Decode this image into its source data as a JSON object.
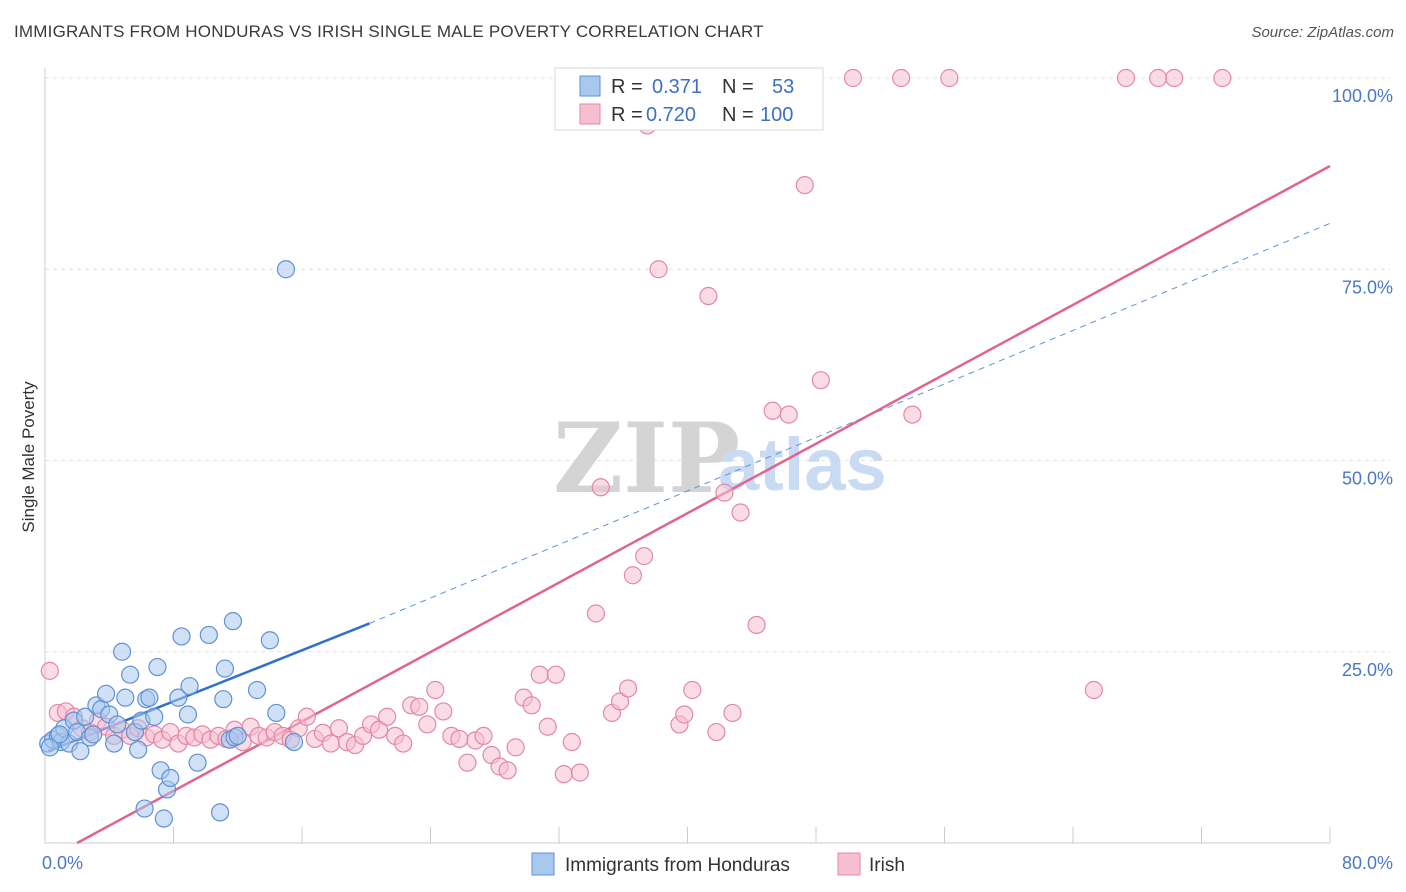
{
  "title": "IMMIGRANTS FROM HONDURAS VS IRISH SINGLE MALE POVERTY CORRELATION CHART",
  "source": "Source: ZipAtlas.com",
  "watermark": {
    "zip": "ZIP",
    "atlas": "atlas"
  },
  "colors": {
    "blue_fill": "#a9c8ee",
    "blue_stroke": "#5f92d6",
    "blue_line": "#2f6fd0",
    "pink_fill": "#f6bfd0",
    "pink_stroke": "#e487a8",
    "pink_line": "#e0648f",
    "grid": "#e3e3e3",
    "tick_text": "#4a78c8"
  },
  "legend": {
    "rows": [
      {
        "r_label": "R =",
        "r_value": "0.371",
        "n_label": "N =",
        "n_value": "53"
      },
      {
        "r_label": "R =",
        "r_value": "0.720",
        "n_label": "N =",
        "n_value": "100"
      }
    ]
  },
  "chart_data": {
    "type": "scatter",
    "title": "IMMIGRANTS FROM HONDURAS VS IRISH SINGLE MALE POVERTY CORRELATION CHART",
    "xlabel": "",
    "ylabel": "Single Male Poverty",
    "xlim": [
      0,
      80
    ],
    "ylim": [
      0,
      100
    ],
    "x_tick_labels": [
      "0.0%",
      "80.0%"
    ],
    "y_tick_labels": [
      "25.0%",
      "50.0%",
      "75.0%",
      "100.0%"
    ],
    "y_ticks": [
      25,
      50,
      75,
      100
    ],
    "grid": true,
    "legend_position": "top-center",
    "series": [
      {
        "name": "Immigrants from Honduras",
        "color": "#a9c8ee",
        "r": 0.371,
        "n": 53,
        "trend": {
          "x0": 0.2,
          "y0": 12.0,
          "x1": 20.2,
          "y1": 28.7,
          "extended_x1": 80,
          "extended_y1": 81.0
        },
        "points": [
          [
            0.2,
            13.0
          ],
          [
            0.5,
            13.5
          ],
          [
            0.8,
            14.0
          ],
          [
            1.0,
            13.2
          ],
          [
            1.2,
            15.0
          ],
          [
            1.5,
            13.0
          ],
          [
            1.8,
            16.0
          ],
          [
            2.0,
            14.5
          ],
          [
            2.2,
            12.0
          ],
          [
            2.5,
            16.5
          ],
          [
            2.8,
            13.8
          ],
          [
            3.0,
            14.2
          ],
          [
            3.2,
            18.0
          ],
          [
            3.5,
            17.5
          ],
          [
            3.8,
            19.5
          ],
          [
            4.0,
            16.8
          ],
          [
            4.3,
            13.0
          ],
          [
            4.5,
            15.5
          ],
          [
            4.8,
            25.0
          ],
          [
            5.0,
            19.0
          ],
          [
            5.3,
            22.0
          ],
          [
            5.6,
            14.5
          ],
          [
            5.8,
            12.2
          ],
          [
            6.0,
            16.0
          ],
          [
            6.3,
            18.8
          ],
          [
            6.5,
            19.0
          ],
          [
            6.8,
            16.5
          ],
          [
            7.0,
            23.0
          ],
          [
            7.2,
            9.5
          ],
          [
            7.6,
            7.0
          ],
          [
            7.8,
            8.5
          ],
          [
            6.2,
            4.5
          ],
          [
            7.4,
            3.2
          ],
          [
            8.3,
            19.0
          ],
          [
            8.5,
            27.0
          ],
          [
            9.0,
            20.5
          ],
          [
            8.9,
            16.8
          ],
          [
            9.5,
            10.5
          ],
          [
            10.2,
            27.2
          ],
          [
            11.2,
            22.8
          ],
          [
            11.1,
            18.8
          ],
          [
            11.5,
            13.5
          ],
          [
            11.7,
            29.0
          ],
          [
            11.8,
            13.8
          ],
          [
            12.0,
            14.0
          ],
          [
            13.2,
            20.0
          ],
          [
            14.0,
            26.5
          ],
          [
            14.4,
            17.0
          ],
          [
            15.5,
            13.2
          ],
          [
            15.0,
            75.0
          ],
          [
            10.9,
            4.0
          ],
          [
            0.3,
            12.5
          ],
          [
            0.9,
            14.2
          ]
        ]
      },
      {
        "name": "Irish",
        "color": "#f6bfd0",
        "r": 0.72,
        "n": 100,
        "trend": {
          "x0": 2.0,
          "y0": 0.0,
          "x1": 80,
          "y1": 88.5
        },
        "points": [
          [
            0.3,
            22.5
          ],
          [
            0.8,
            17.0
          ],
          [
            1.3,
            17.2
          ],
          [
            1.8,
            16.5
          ],
          [
            2.3,
            15.0
          ],
          [
            2.8,
            14.5
          ],
          [
            3.3,
            16.0
          ],
          [
            3.8,
            15.2
          ],
          [
            4.3,
            14.0
          ],
          [
            4.8,
            14.8
          ],
          [
            5.3,
            14.0
          ],
          [
            5.8,
            15.0
          ],
          [
            6.3,
            13.8
          ],
          [
            6.8,
            14.2
          ],
          [
            7.3,
            13.5
          ],
          [
            7.8,
            14.5
          ],
          [
            8.3,
            13.0
          ],
          [
            8.8,
            14.0
          ],
          [
            9.3,
            13.8
          ],
          [
            9.8,
            14.2
          ],
          [
            10.3,
            13.5
          ],
          [
            10.8,
            14.0
          ],
          [
            11.3,
            13.6
          ],
          [
            11.8,
            14.8
          ],
          [
            12.3,
            13.2
          ],
          [
            12.8,
            15.2
          ],
          [
            13.3,
            14.0
          ],
          [
            13.8,
            13.8
          ],
          [
            14.3,
            14.5
          ],
          [
            14.8,
            14.0
          ],
          [
            15.3,
            13.5
          ],
          [
            15.8,
            15.0
          ],
          [
            16.3,
            16.5
          ],
          [
            16.8,
            13.6
          ],
          [
            17.3,
            14.4
          ],
          [
            17.8,
            13.0
          ],
          [
            18.3,
            15.0
          ],
          [
            18.8,
            13.2
          ],
          [
            19.3,
            12.8
          ],
          [
            19.8,
            14.0
          ],
          [
            20.3,
            15.5
          ],
          [
            20.8,
            14.8
          ],
          [
            21.3,
            16.5
          ],
          [
            21.8,
            14.0
          ],
          [
            22.3,
            13.0
          ],
          [
            22.8,
            18.0
          ],
          [
            23.3,
            17.8
          ],
          [
            23.8,
            15.5
          ],
          [
            24.3,
            20.0
          ],
          [
            24.8,
            17.2
          ],
          [
            25.3,
            14.0
          ],
          [
            25.8,
            13.6
          ],
          [
            26.3,
            10.5
          ],
          [
            26.8,
            13.4
          ],
          [
            27.3,
            14.0
          ],
          [
            27.8,
            11.5
          ],
          [
            28.3,
            10.0
          ],
          [
            28.8,
            9.5
          ],
          [
            29.3,
            12.5
          ],
          [
            29.8,
            19.0
          ],
          [
            30.3,
            18.0
          ],
          [
            30.8,
            22.0
          ],
          [
            31.3,
            15.2
          ],
          [
            31.8,
            22.0
          ],
          [
            32.3,
            9.0
          ],
          [
            32.8,
            13.2
          ],
          [
            33.3,
            9.2
          ],
          [
            34.3,
            30.0
          ],
          [
            35.3,
            17.0
          ],
          [
            35.8,
            18.5
          ],
          [
            36.3,
            20.2
          ],
          [
            37.3,
            37.5
          ],
          [
            36.6,
            35.0
          ],
          [
            34.6,
            46.5
          ],
          [
            37.8,
            100.0
          ],
          [
            37.5,
            93.8
          ],
          [
            38.2,
            75.0
          ],
          [
            39.5,
            15.5
          ],
          [
            39.8,
            16.8
          ],
          [
            40.3,
            20.0
          ],
          [
            41.3,
            71.5
          ],
          [
            41.8,
            14.5
          ],
          [
            42.3,
            45.8
          ],
          [
            42.8,
            17.0
          ],
          [
            43.3,
            43.2
          ],
          [
            44.3,
            28.5
          ],
          [
            45.3,
            56.5
          ],
          [
            46.3,
            56.0
          ],
          [
            47.3,
            86.0
          ],
          [
            48.3,
            60.5
          ],
          [
            50.3,
            100.0
          ],
          [
            53.3,
            100.0
          ],
          [
            54.0,
            56.0
          ],
          [
            56.3,
            100.0
          ],
          [
            65.3,
            20.0
          ],
          [
            67.3,
            100.0
          ],
          [
            69.3,
            100.0
          ],
          [
            70.3,
            100.0
          ],
          [
            73.3,
            100.0
          ],
          [
            36.4,
            100.0
          ]
        ]
      }
    ]
  },
  "bottom_legend": [
    {
      "label": "Immigrants from Honduras"
    },
    {
      "label": "Irish"
    }
  ]
}
